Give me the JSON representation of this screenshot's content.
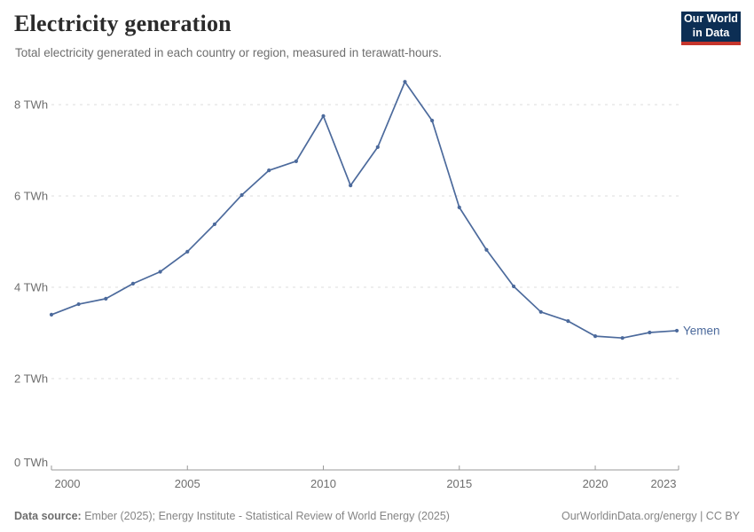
{
  "header": {
    "title": "Electricity generation",
    "subtitle": "Total electricity generated in each country or region, measured in terawatt-hours.",
    "logo": {
      "line1": "Our World",
      "line2": "in Data"
    }
  },
  "chart_data": {
    "type": "line",
    "title": "Electricity generation",
    "unit": "TWh",
    "x": [
      2000,
      2001,
      2002,
      2003,
      2004,
      2005,
      2006,
      2007,
      2008,
      2009,
      2010,
      2011,
      2012,
      2013,
      2014,
      2015,
      2016,
      2017,
      2018,
      2019,
      2020,
      2021,
      2022,
      2023
    ],
    "series": [
      {
        "name": "Yemen",
        "color": "#4C6A9C",
        "values": [
          3.4,
          3.63,
          3.75,
          4.08,
          4.34,
          4.78,
          5.38,
          6.02,
          6.56,
          6.76,
          7.75,
          6.23,
          7.07,
          8.5,
          7.65,
          5.75,
          4.82,
          4.02,
          3.46,
          3.26,
          2.93,
          2.89,
          3.01,
          3.05
        ]
      }
    ],
    "xlabel": "",
    "ylabel": "",
    "ylim": [
      0,
      8
    ],
    "y_ticks": [
      0,
      2,
      4,
      6,
      8
    ],
    "y_tick_labels": [
      "0 TWh",
      "2 TWh",
      "4 TWh",
      "6 TWh",
      "8 TWh"
    ],
    "x_tick_years": [
      2000,
      2005,
      2010,
      2015,
      2020,
      2023
    ],
    "x_tick_labels": [
      "2000",
      "2005",
      "2010",
      "2015",
      "2020",
      "2023"
    ],
    "grid": "horizontal-dashed",
    "legend_position": "end-of-line-label"
  },
  "footer": {
    "source_label": "Data source:",
    "source_text": " Ember (2025); Energy Institute - Statistical Review of World Energy (2025)",
    "right_text": "OurWorldinData.org/energy | CC BY"
  },
  "colors": {
    "line": "#4C6A9C",
    "grid": "#dcdcdc",
    "axis": "#999999",
    "tick_text": "#6e6e6e",
    "logo_navy": "#0c2e54",
    "logo_red": "#c5352c"
  }
}
